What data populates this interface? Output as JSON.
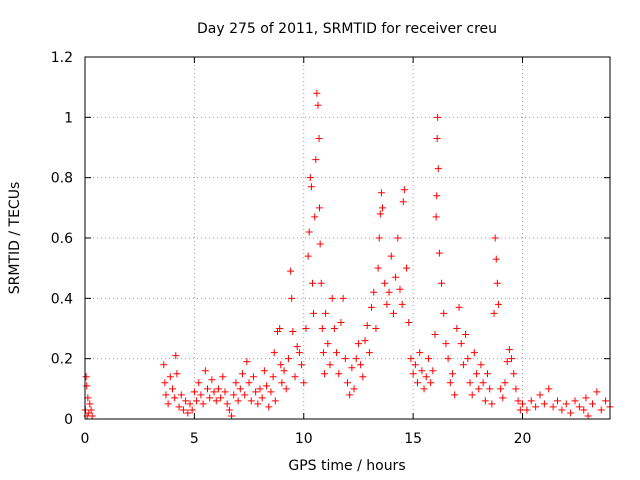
{
  "chart_data": {
    "type": "scatter",
    "title": "Day 275 of 2011, SRMTID for receiver creu",
    "xlabel": "GPS time / hours",
    "ylabel": "SRMTID / TECUs",
    "xlim": [
      0,
      24
    ],
    "ylim": [
      0,
      1.2
    ],
    "x_ticks": [
      0,
      5,
      10,
      15,
      20
    ],
    "x_tick_labels": [
      "0",
      "5",
      "10",
      "15",
      "20"
    ],
    "y_ticks": [
      0,
      0.2,
      0.4,
      0.6,
      0.8,
      1,
      1.2
    ],
    "y_tick_labels": [
      "0",
      "0.2",
      "0.4",
      "0.6",
      "0.8",
      "1",
      "1.2"
    ],
    "grid": true,
    "marker": "+",
    "colors": {
      "points": "#ff0000",
      "grid": "#a0a0a0",
      "axes": "#000000"
    },
    "series": [
      {
        "name": "SRMTID",
        "points": [
          [
            0.02,
            0.03
          ],
          [
            0.05,
            0.14
          ],
          [
            0.08,
            0.11
          ],
          [
            0.1,
            0.01
          ],
          [
            0.13,
            0.07
          ],
          [
            0.17,
            0.02
          ],
          [
            0.22,
            0.05
          ],
          [
            0.28,
            0.03
          ],
          [
            0.33,
            0.01
          ],
          [
            3.6,
            0.18
          ],
          [
            3.65,
            0.12
          ],
          [
            3.7,
            0.08
          ],
          [
            3.8,
            0.05
          ],
          [
            3.9,
            0.14
          ],
          [
            4.0,
            0.1
          ],
          [
            4.1,
            0.07
          ],
          [
            4.15,
            0.21
          ],
          [
            4.2,
            0.15
          ],
          [
            4.3,
            0.04
          ],
          [
            4.4,
            0.08
          ],
          [
            4.5,
            0.03
          ],
          [
            4.6,
            0.06
          ],
          [
            4.7,
            0.02
          ],
          [
            4.8,
            0.05
          ],
          [
            4.9,
            0.03
          ],
          [
            5.0,
            0.09
          ],
          [
            5.1,
            0.06
          ],
          [
            5.2,
            0.12
          ],
          [
            5.3,
            0.08
          ],
          [
            5.4,
            0.05
          ],
          [
            5.5,
            0.16
          ],
          [
            5.6,
            0.1
          ],
          [
            5.7,
            0.07
          ],
          [
            5.8,
            0.13
          ],
          [
            5.9,
            0.09
          ],
          [
            6.0,
            0.06
          ],
          [
            6.1,
            0.1
          ],
          [
            6.2,
            0.07
          ],
          [
            6.3,
            0.14
          ],
          [
            6.4,
            0.09
          ],
          [
            6.5,
            0.05
          ],
          [
            6.6,
            0.03
          ],
          [
            6.7,
            0.01
          ],
          [
            6.8,
            0.08
          ],
          [
            6.9,
            0.12
          ],
          [
            7.0,
            0.06
          ],
          [
            7.1,
            0.1
          ],
          [
            7.2,
            0.15
          ],
          [
            7.3,
            0.08
          ],
          [
            7.4,
            0.19
          ],
          [
            7.5,
            0.12
          ],
          [
            7.6,
            0.06
          ],
          [
            7.7,
            0.14
          ],
          [
            7.8,
            0.09
          ],
          [
            7.9,
            0.05
          ],
          [
            8.0,
            0.1
          ],
          [
            8.1,
            0.07
          ],
          [
            8.2,
            0.16
          ],
          [
            8.3,
            0.11
          ],
          [
            8.4,
            0.04
          ],
          [
            8.5,
            0.09
          ],
          [
            8.6,
            0.14
          ],
          [
            8.65,
            0.22
          ],
          [
            8.7,
            0.06
          ],
          [
            8.8,
            0.29
          ],
          [
            8.9,
            0.3
          ],
          [
            8.95,
            0.18
          ],
          [
            9.0,
            0.12
          ],
          [
            9.1,
            0.16
          ],
          [
            9.2,
            0.1
          ],
          [
            9.3,
            0.2
          ],
          [
            9.4,
            0.49
          ],
          [
            9.45,
            0.4
          ],
          [
            9.5,
            0.29
          ],
          [
            9.6,
            0.14
          ],
          [
            9.7,
            0.24
          ],
          [
            9.8,
            0.22
          ],
          [
            9.9,
            0.18
          ],
          [
            10.0,
            0.12
          ],
          [
            10.1,
            0.3
          ],
          [
            10.2,
            0.54
          ],
          [
            10.25,
            0.62
          ],
          [
            10.3,
            0.8
          ],
          [
            10.35,
            0.77
          ],
          [
            10.4,
            0.45
          ],
          [
            10.45,
            0.35
          ],
          [
            10.5,
            0.67
          ],
          [
            10.55,
            0.86
          ],
          [
            10.6,
            1.08
          ],
          [
            10.65,
            1.04
          ],
          [
            10.7,
            0.93
          ],
          [
            10.72,
            0.7
          ],
          [
            10.75,
            0.58
          ],
          [
            10.8,
            0.45
          ],
          [
            10.85,
            0.3
          ],
          [
            10.9,
            0.22
          ],
          [
            10.95,
            0.15
          ],
          [
            11.0,
            0.35
          ],
          [
            11.1,
            0.25
          ],
          [
            11.2,
            0.18
          ],
          [
            11.3,
            0.4
          ],
          [
            11.4,
            0.3
          ],
          [
            11.5,
            0.22
          ],
          [
            11.6,
            0.15
          ],
          [
            11.7,
            0.32
          ],
          [
            11.8,
            0.4
          ],
          [
            11.9,
            0.2
          ],
          [
            12.0,
            0.12
          ],
          [
            12.1,
            0.08
          ],
          [
            12.2,
            0.17
          ],
          [
            12.3,
            0.1
          ],
          [
            12.4,
            0.2
          ],
          [
            12.5,
            0.25
          ],
          [
            12.6,
            0.18
          ],
          [
            12.7,
            0.14
          ],
          [
            12.8,
            0.26
          ],
          [
            12.9,
            0.31
          ],
          [
            13.0,
            0.22
          ],
          [
            13.1,
            0.37
          ],
          [
            13.2,
            0.42
          ],
          [
            13.3,
            0.3
          ],
          [
            13.4,
            0.5
          ],
          [
            13.45,
            0.6
          ],
          [
            13.5,
            0.68
          ],
          [
            13.55,
            0.75
          ],
          [
            13.6,
            0.7
          ],
          [
            13.7,
            0.45
          ],
          [
            13.8,
            0.38
          ],
          [
            13.9,
            0.42
          ],
          [
            14.0,
            0.54
          ],
          [
            14.1,
            0.35
          ],
          [
            14.2,
            0.47
          ],
          [
            14.3,
            0.6
          ],
          [
            14.4,
            0.43
          ],
          [
            14.5,
            0.38
          ],
          [
            14.55,
            0.72
          ],
          [
            14.6,
            0.76
          ],
          [
            14.7,
            0.5
          ],
          [
            14.8,
            0.32
          ],
          [
            14.9,
            0.2
          ],
          [
            15.0,
            0.15
          ],
          [
            15.1,
            0.18
          ],
          [
            15.2,
            0.12
          ],
          [
            15.3,
            0.22
          ],
          [
            15.4,
            0.16
          ],
          [
            15.5,
            0.1
          ],
          [
            15.6,
            0.14
          ],
          [
            15.7,
            0.2
          ],
          [
            15.8,
            0.12
          ],
          [
            15.9,
            0.16
          ],
          [
            16.0,
            0.28
          ],
          [
            16.05,
            0.67
          ],
          [
            16.08,
            0.74
          ],
          [
            16.1,
            0.93
          ],
          [
            16.12,
            1.0
          ],
          [
            16.15,
            0.83
          ],
          [
            16.2,
            0.55
          ],
          [
            16.3,
            0.45
          ],
          [
            16.4,
            0.35
          ],
          [
            16.5,
            0.25
          ],
          [
            16.6,
            0.2
          ],
          [
            16.7,
            0.12
          ],
          [
            16.8,
            0.15
          ],
          [
            16.9,
            0.08
          ],
          [
            17.0,
            0.3
          ],
          [
            17.1,
            0.37
          ],
          [
            17.2,
            0.25
          ],
          [
            17.3,
            0.18
          ],
          [
            17.4,
            0.28
          ],
          [
            17.5,
            0.2
          ],
          [
            17.6,
            0.12
          ],
          [
            17.7,
            0.08
          ],
          [
            17.8,
            0.22
          ],
          [
            17.9,
            0.15
          ],
          [
            18.0,
            0.1
          ],
          [
            18.1,
            0.18
          ],
          [
            18.2,
            0.12
          ],
          [
            18.3,
            0.06
          ],
          [
            18.4,
            0.15
          ],
          [
            18.5,
            0.1
          ],
          [
            18.6,
            0.05
          ],
          [
            18.7,
            0.35
          ],
          [
            18.75,
            0.6
          ],
          [
            18.8,
            0.53
          ],
          [
            18.85,
            0.45
          ],
          [
            18.9,
            0.38
          ],
          [
            19.0,
            0.1
          ],
          [
            19.1,
            0.07
          ],
          [
            19.2,
            0.12
          ],
          [
            19.3,
            0.19
          ],
          [
            19.4,
            0.23
          ],
          [
            19.5,
            0.2
          ],
          [
            19.6,
            0.15
          ],
          [
            19.7,
            0.1
          ],
          [
            19.8,
            0.06
          ],
          [
            19.9,
            0.03
          ],
          [
            20.0,
            0.05
          ],
          [
            20.2,
            0.03
          ],
          [
            20.4,
            0.06
          ],
          [
            20.6,
            0.04
          ],
          [
            20.8,
            0.08
          ],
          [
            21.0,
            0.05
          ],
          [
            21.2,
            0.1
          ],
          [
            21.4,
            0.04
          ],
          [
            21.6,
            0.06
          ],
          [
            21.8,
            0.03
          ],
          [
            22.0,
            0.05
          ],
          [
            22.2,
            0.02
          ],
          [
            22.4,
            0.06
          ],
          [
            22.6,
            0.04
          ],
          [
            22.8,
            0.03
          ],
          [
            22.9,
            0.07
          ],
          [
            23.0,
            0.01
          ],
          [
            23.2,
            0.05
          ],
          [
            23.4,
            0.09
          ],
          [
            23.6,
            0.03
          ],
          [
            23.8,
            0.06
          ],
          [
            24.0,
            0.04
          ]
        ]
      }
    ]
  }
}
